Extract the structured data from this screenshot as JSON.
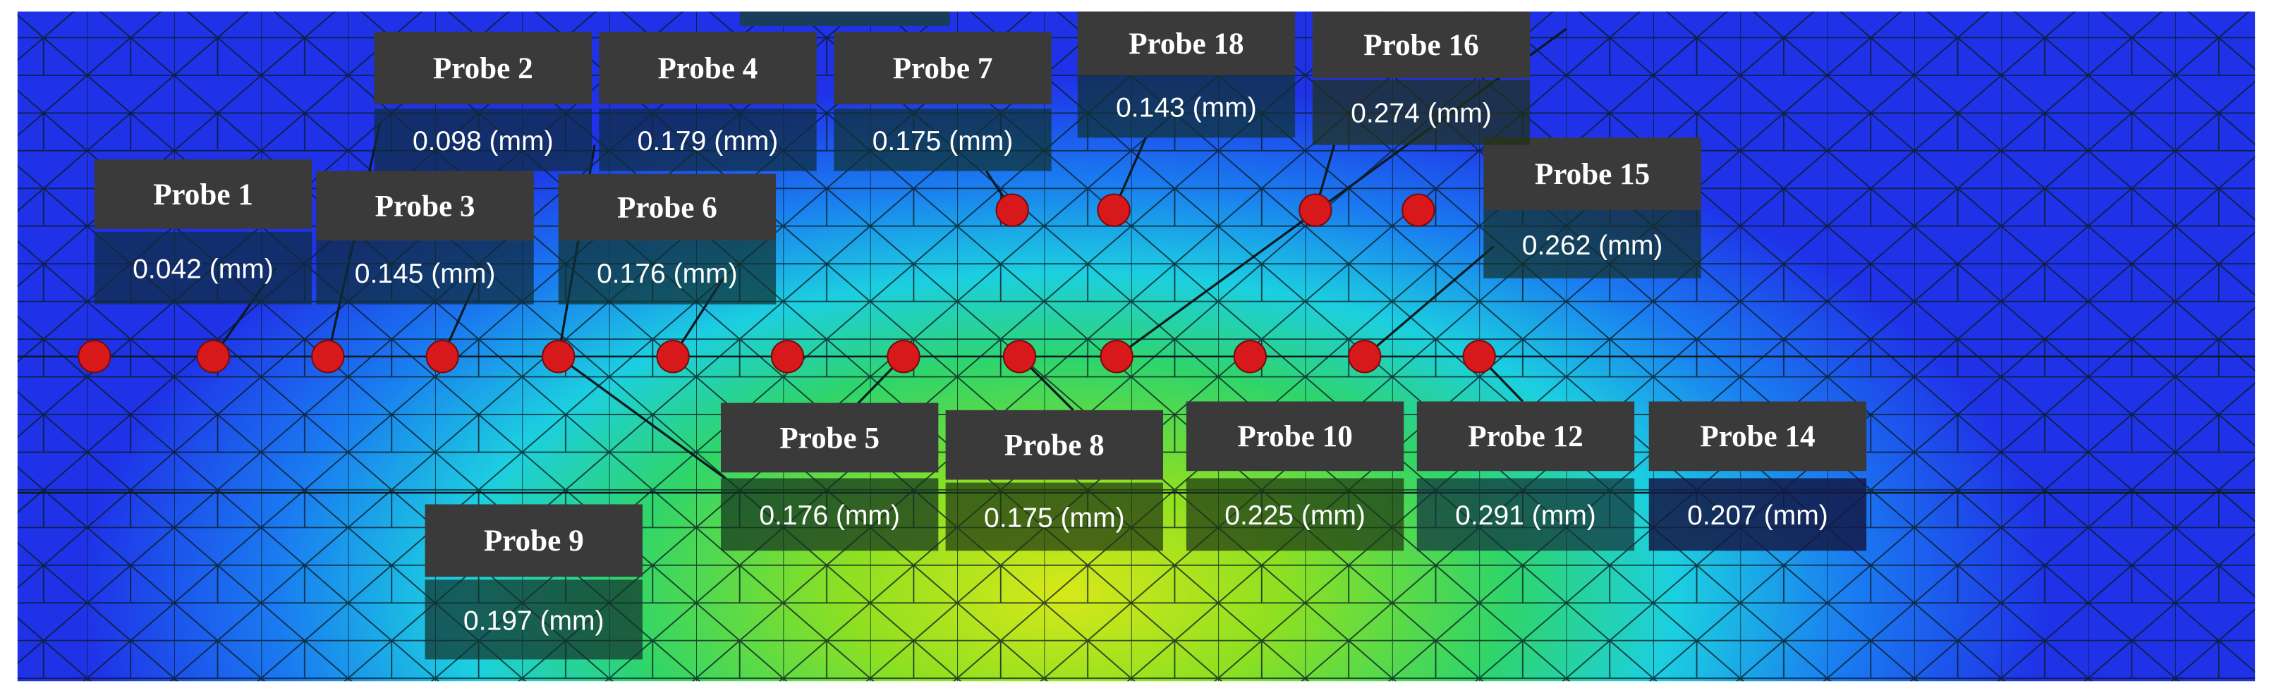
{
  "probes": [
    {
      "name": "Probe 1",
      "value": "0.042 (mm)"
    },
    {
      "name": "Probe 2",
      "value": "0.098 (mm)"
    },
    {
      "name": "Probe 3",
      "value": "0.145 (mm)"
    },
    {
      "name": "Probe 4",
      "value": "0.179 (mm)"
    },
    {
      "name": "Probe 5",
      "value": "0.176 (mm)"
    },
    {
      "name": "Probe 6",
      "value": "0.176 (mm)"
    },
    {
      "name": "Probe 7",
      "value": "0.175 (mm)"
    },
    {
      "name": "Probe 8",
      "value": "0.175 (mm)"
    },
    {
      "name": "Probe 9",
      "value": "0.197 (mm)"
    },
    {
      "name": "Probe 10",
      "value": "0.225 (mm)"
    },
    {
      "name": "Probe 12",
      "value": "0.291 (mm)"
    },
    {
      "name": "Probe 14",
      "value": "0.207 (mm)"
    },
    {
      "name": "Probe 15",
      "value": "0.262 (mm)"
    },
    {
      "name": "Probe 16",
      "value": "0.274 (mm)"
    },
    {
      "name": "Probe 18",
      "value": "0.143 (mm)"
    }
  ]
}
